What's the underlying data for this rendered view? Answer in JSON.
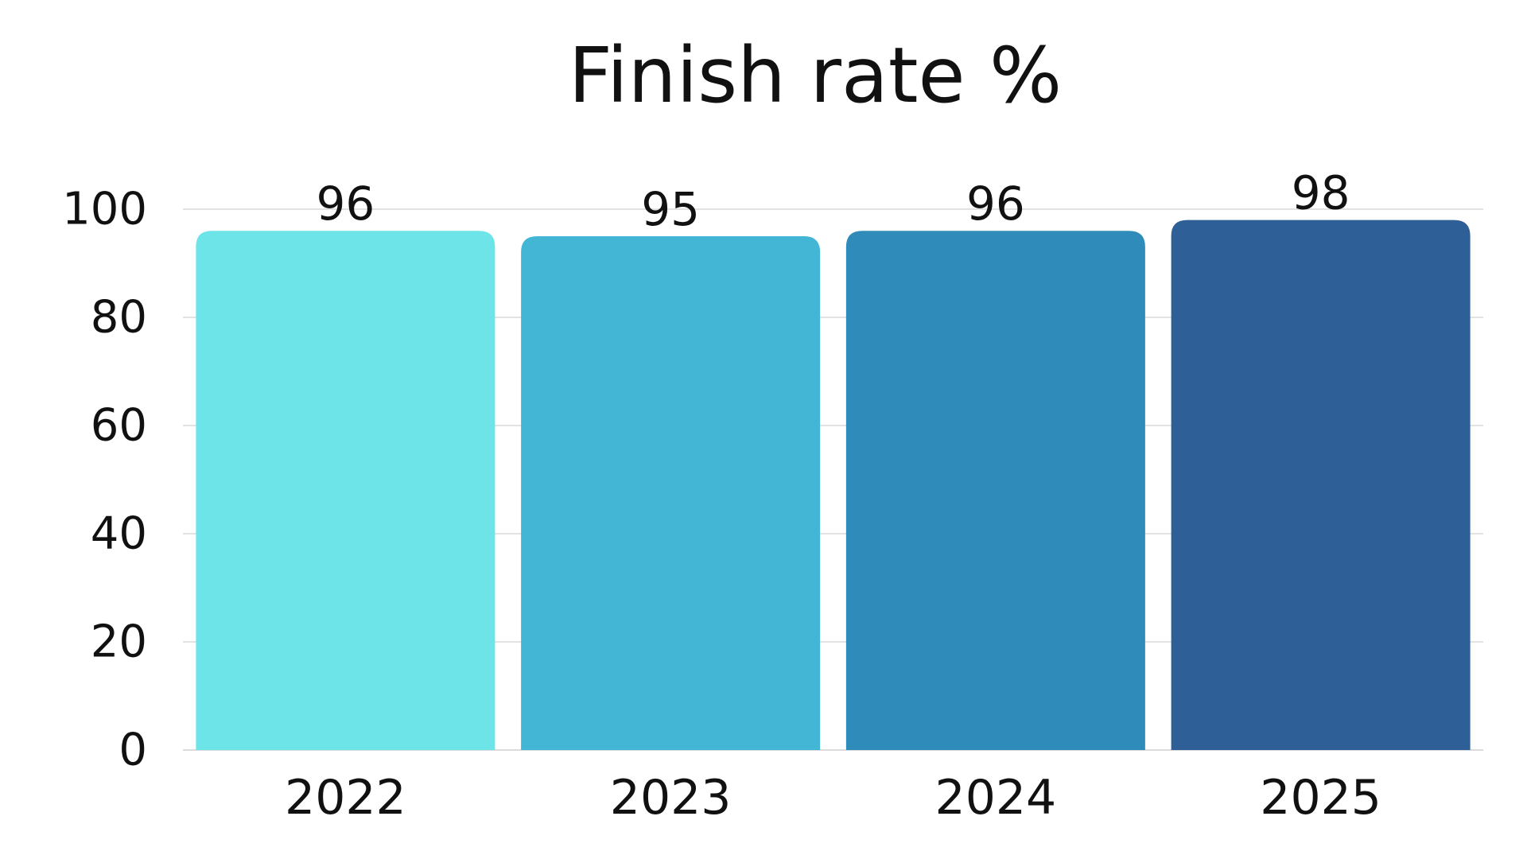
{
  "chart_data": {
    "type": "bar",
    "title": "Finish rate %",
    "xlabel": "",
    "ylabel": "",
    "categories": [
      "2022",
      "2023",
      "2024",
      "2025"
    ],
    "values": [
      96,
      95,
      96,
      98
    ],
    "data_labels": [
      "96",
      "95",
      "96",
      "98"
    ],
    "ylim": [
      0,
      100
    ],
    "y_ticks": [
      0,
      20,
      40,
      60,
      80,
      100
    ],
    "y_tick_labels": [
      "0",
      "20",
      "40",
      "60",
      "80",
      "100"
    ],
    "grid": true,
    "legend": "none",
    "bar_colors": [
      "#6de4e8",
      "#44b6d5",
      "#2e8bba",
      "#2e5f96"
    ],
    "grid_color": "#d9d9d9",
    "axis_color": "#cfcfcf"
  }
}
